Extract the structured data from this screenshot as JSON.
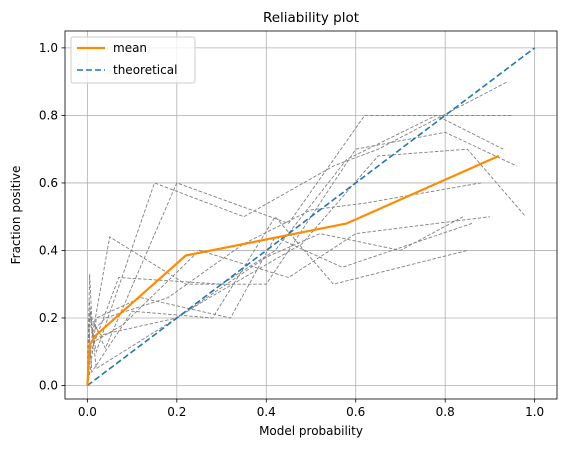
{
  "chart_data": {
    "type": "line",
    "title": "Reliability plot",
    "xlabel": "Model probability",
    "ylabel": "Fraction positive",
    "xlim": [
      -0.05,
      1.05
    ],
    "ylim": [
      -0.04,
      1.05
    ],
    "x_ticks": [
      0.0,
      0.2,
      0.4,
      0.6,
      0.8,
      1.0
    ],
    "y_ticks": [
      0.0,
      0.2,
      0.4,
      0.6,
      0.8,
      1.0
    ],
    "x_tick_labels": [
      "0.0",
      "0.2",
      "0.4",
      "0.6",
      "0.8",
      "1.0"
    ],
    "y_tick_labels": [
      "0.0",
      "0.2",
      "0.4",
      "0.6",
      "0.8",
      "1.0"
    ],
    "grid": true,
    "legend_position": "top-left",
    "legend": [
      "mean",
      "theoretical"
    ],
    "colors": {
      "mean": "#ff8c00",
      "theoretical": "#1f77b4",
      "fold": "#808080",
      "grid": "#b0b0b0"
    },
    "series": [
      {
        "name": "mean",
        "style": "solid",
        "x": [
          0.0,
          0.005,
          0.02,
          0.22,
          0.58,
          0.92
        ],
        "y": [
          0.0,
          0.12,
          0.15,
          0.385,
          0.48,
          0.68
        ]
      },
      {
        "name": "theoretical",
        "style": "dashed",
        "x": [
          0.0,
          1.0
        ],
        "y": [
          0.0,
          1.0
        ]
      }
    ],
    "fold_series": [
      {
        "x": [
          0.0,
          0.005,
          0.01,
          0.04,
          0.2,
          0.45,
          0.62,
          0.95
        ],
        "y": [
          0.0,
          0.33,
          0.2,
          0.11,
          0.6,
          0.48,
          0.8,
          0.8
        ]
      },
      {
        "x": [
          0.0,
          0.004,
          0.02,
          0.15,
          0.35,
          0.55,
          0.65,
          0.94
        ],
        "y": [
          0.0,
          0.2,
          0.1,
          0.6,
          0.5,
          0.65,
          0.7,
          0.9
        ]
      },
      {
        "x": [
          0.0,
          0.01,
          0.05,
          0.22,
          0.4,
          0.6,
          0.8,
          0.96
        ],
        "y": [
          0.0,
          0.14,
          0.44,
          0.3,
          0.3,
          0.7,
          0.75,
          0.65
        ]
      },
      {
        "x": [
          0.0,
          0.006,
          0.02,
          0.26,
          0.48,
          0.65,
          0.85,
          0.98
        ],
        "y": [
          0.0,
          0.22,
          0.05,
          0.25,
          0.42,
          0.68,
          0.7,
          0.5
        ]
      },
      {
        "x": [
          0.0,
          0.008,
          0.07,
          0.3,
          0.42,
          0.58,
          0.78,
          0.93
        ],
        "y": [
          0.0,
          0.1,
          0.32,
          0.3,
          0.4,
          0.67,
          0.8,
          0.7
        ]
      },
      {
        "x": [
          0.0,
          0.003,
          0.01,
          0.1,
          0.28,
          0.42,
          0.55,
          0.85
        ],
        "y": [
          0.0,
          0.18,
          0.04,
          0.22,
          0.2,
          0.5,
          0.3,
          0.4
        ]
      },
      {
        "x": [
          0.0,
          0.005,
          0.03,
          0.2,
          0.4,
          0.52,
          0.7,
          0.84
        ],
        "y": [
          0.0,
          0.2,
          0.15,
          0.2,
          0.38,
          0.45,
          0.4,
          0.5
        ]
      },
      {
        "x": [
          0.0,
          0.004,
          0.015,
          0.08,
          0.25,
          0.45,
          0.6,
          0.9
        ],
        "y": [
          0.0,
          0.25,
          0.13,
          0.18,
          0.4,
          0.32,
          0.45,
          0.5
        ]
      },
      {
        "x": [
          0.0,
          0.007,
          0.02,
          0.12,
          0.32,
          0.42,
          0.57,
          0.86
        ],
        "y": [
          0.0,
          0.05,
          0.2,
          0.26,
          0.2,
          0.44,
          0.35,
          0.48
        ]
      },
      {
        "x": [
          0.0,
          0.005,
          0.04,
          0.18,
          0.35,
          0.5,
          0.62,
          0.88
        ],
        "y": [
          0.0,
          0.15,
          0.2,
          0.26,
          0.42,
          0.52,
          0.54,
          0.6
        ]
      }
    ]
  }
}
